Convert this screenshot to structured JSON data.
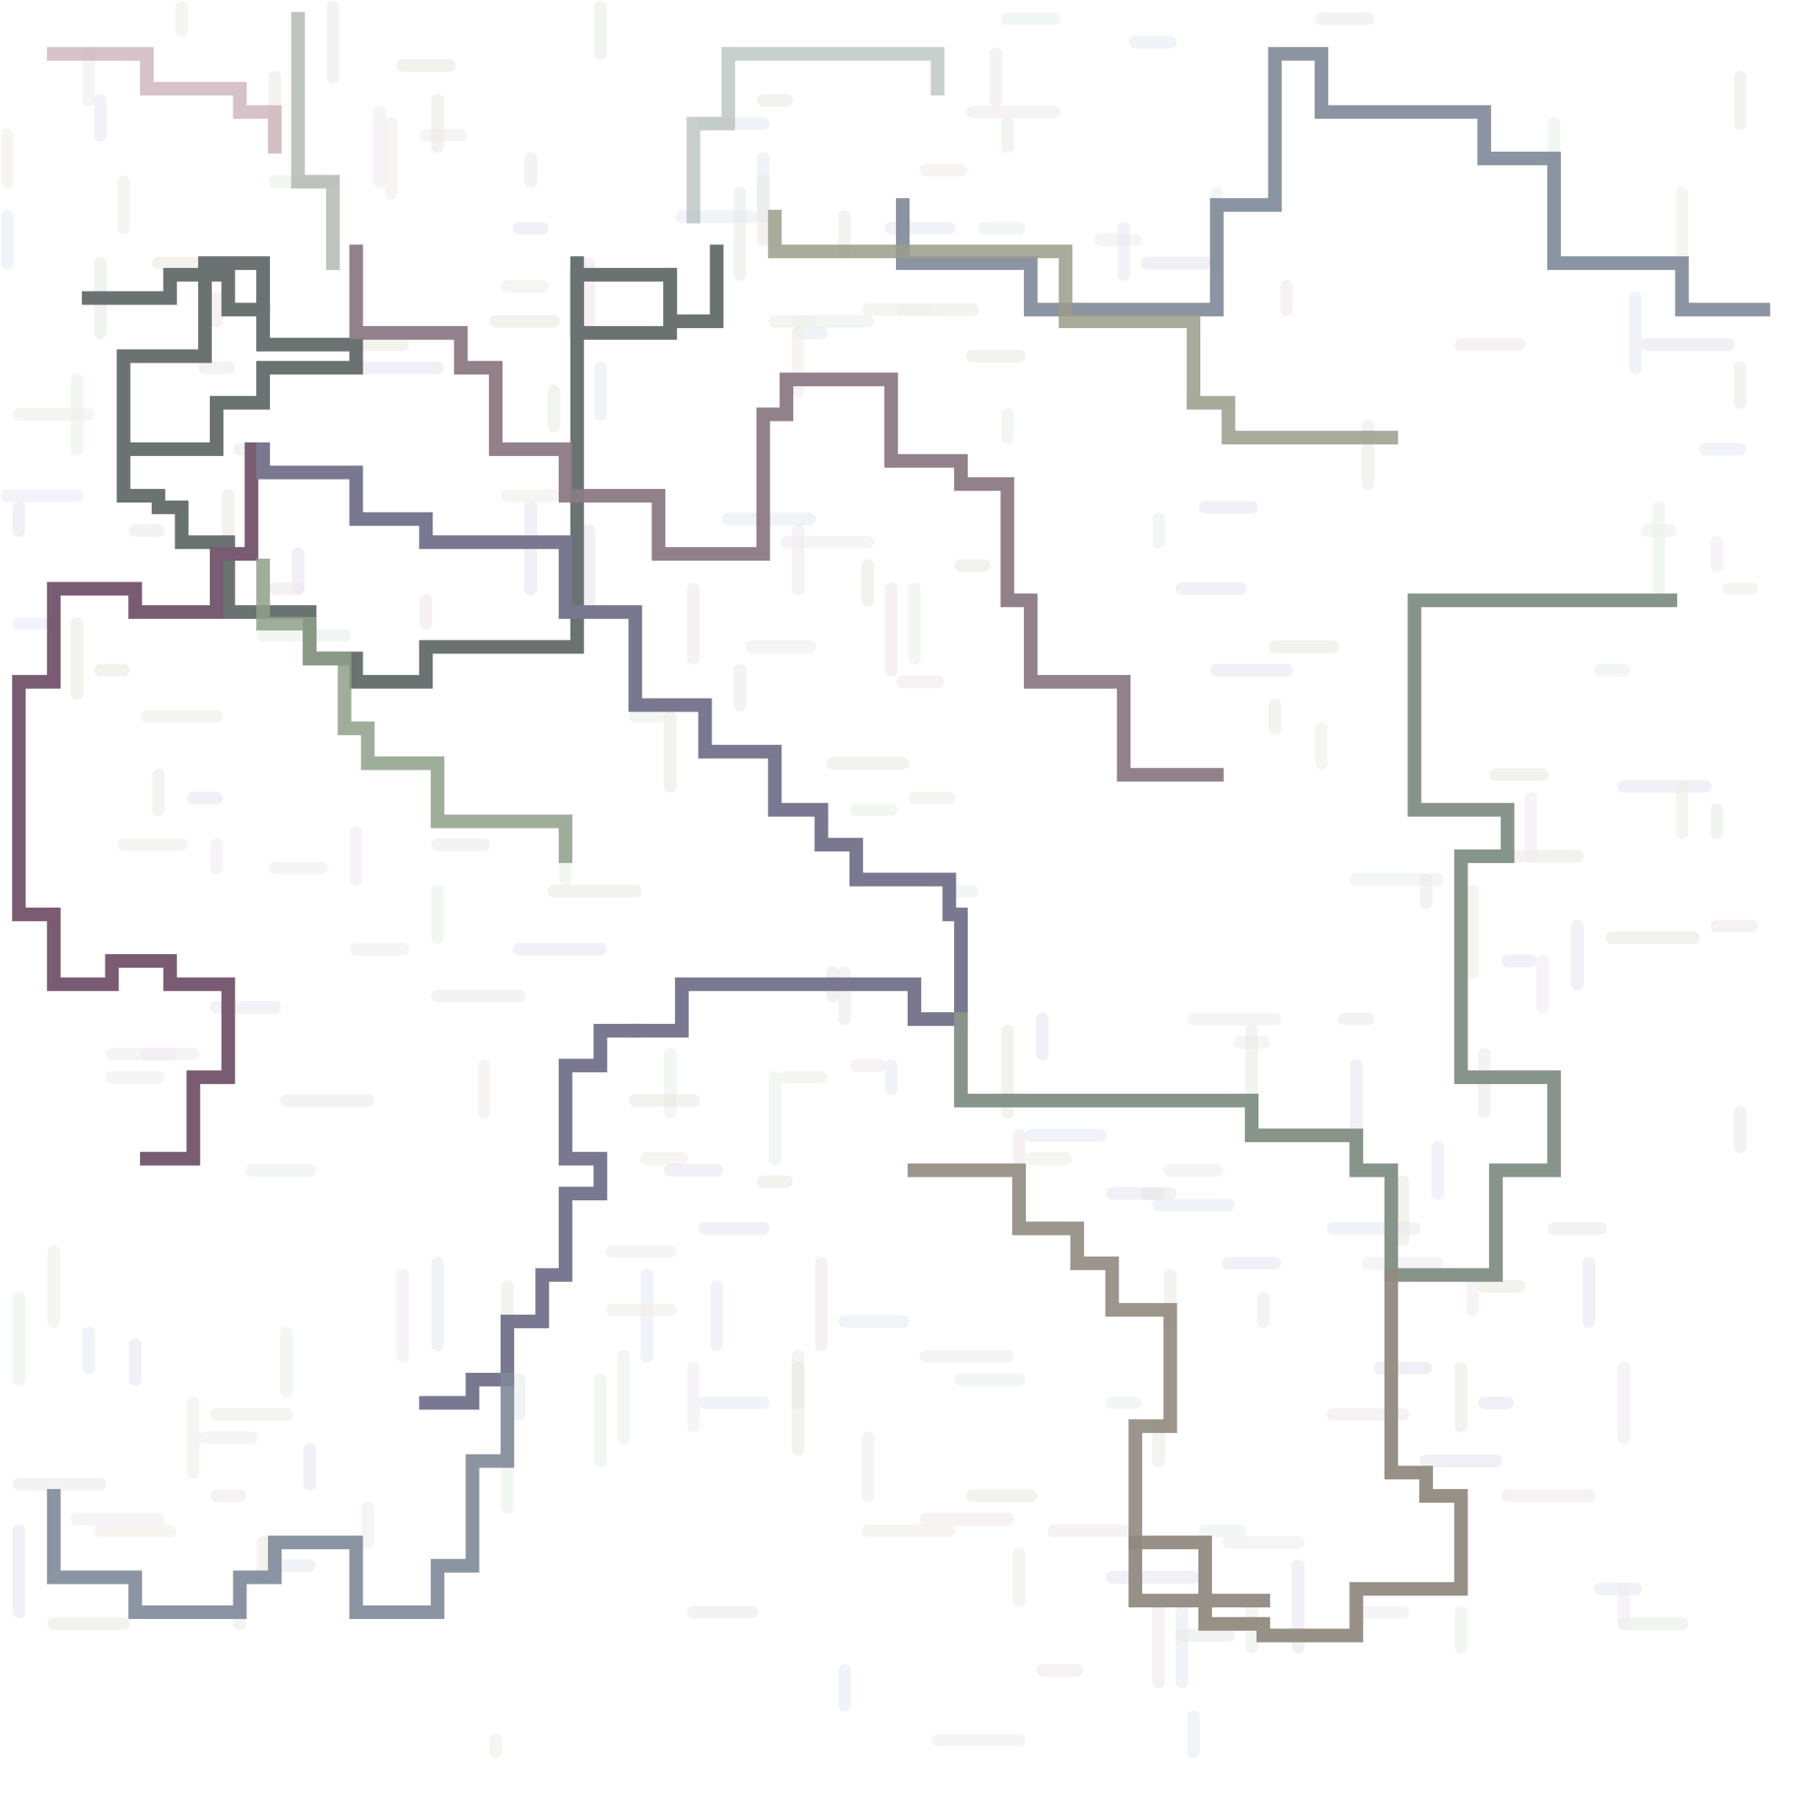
{
  "board": {
    "background": "#ffffff",
    "grid": 50,
    "stroke_dark": "#6a7272",
    "stroke_purple": "#7a5c72",
    "stroke_violet": "#7a7890",
    "stroke_sage": "#86948a",
    "stroke_taupe": "#908a80",
    "stroke_slate": "#7e8898",
    "stroke_rose": "#c8aeb6"
  },
  "paths": [
    {
      "name": "dark-path-left",
      "color": "#6a7272",
      "opacity": 1,
      "cells": [
        [
          7,
          25
        ],
        [
          14,
          25
        ],
        [
          14,
          23
        ],
        [
          19,
          23
        ],
        [
          19,
          26
        ],
        [
          22,
          26
        ],
        [
          22,
          29
        ],
        [
          30,
          29
        ],
        [
          30,
          31
        ],
        [
          22,
          31
        ],
        [
          22,
          34
        ],
        [
          18,
          34
        ],
        [
          18,
          38
        ],
        [
          10,
          38
        ],
        [
          10,
          42
        ],
        [
          13,
          42
        ],
        [
          13,
          43
        ],
        [
          15,
          43
        ],
        [
          15,
          46
        ],
        [
          19,
          46
        ],
        [
          19,
          52
        ],
        [
          26,
          52
        ],
        [
          26,
          56
        ],
        [
          30,
          56
        ],
        [
          30,
          58
        ],
        [
          36,
          58
        ],
        [
          36,
          55
        ],
        [
          49,
          55
        ],
        [
          49,
          23
        ],
        [
          57,
          23
        ],
        [
          57,
          27
        ],
        [
          61,
          27
        ],
        [
          61,
          21
        ]
      ]
    },
    {
      "name": "dark-path-center",
      "color": "#6a7272",
      "opacity": 1,
      "cells": [
        [
          10,
          38
        ],
        [
          10,
          30
        ],
        [
          17,
          30
        ],
        [
          17,
          22
        ],
        [
          22,
          22
        ],
        [
          22,
          26
        ]
      ]
    },
    {
      "name": "dark-path-right",
      "color": "#6a7272",
      "opacity": 1,
      "cells": [
        [
          49,
          22
        ],
        [
          49,
          28
        ],
        [
          57,
          28
        ],
        [
          57,
          23
        ]
      ]
    },
    {
      "name": "top-grey-path",
      "color": "#7e8898",
      "opacity": 0.9,
      "cells": [
        [
          77,
          17
        ],
        [
          77,
          22
        ],
        [
          88,
          22
        ],
        [
          88,
          26
        ],
        [
          104,
          26
        ],
        [
          104,
          17
        ],
        [
          109,
          17
        ],
        [
          109,
          4
        ],
        [
          113,
          4
        ],
        [
          113,
          9
        ],
        [
          127,
          9
        ],
        [
          127,
          13
        ],
        [
          133,
          13
        ],
        [
          133,
          22
        ],
        [
          144,
          22
        ],
        [
          144,
          26
        ],
        [
          151,
          26
        ]
      ]
    },
    {
      "name": "purple-path",
      "color": "#7a5c72",
      "opacity": 1,
      "cells": [
        [
          21,
          38
        ],
        [
          21,
          47
        ],
        [
          18,
          47
        ],
        [
          18,
          52
        ],
        [
          11,
          52
        ],
        [
          11,
          50
        ],
        [
          4,
          50
        ],
        [
          4,
          58
        ],
        [
          1,
          58
        ],
        [
          1,
          78
        ],
        [
          4,
          78
        ],
        [
          4,
          84
        ],
        [
          9,
          84
        ],
        [
          9,
          82
        ],
        [
          14,
          82
        ],
        [
          14,
          84
        ],
        [
          19,
          84
        ],
        [
          19,
          92
        ],
        [
          16,
          92
        ],
        [
          16,
          99
        ],
        [
          12,
          99
        ]
      ]
    },
    {
      "name": "violet-path",
      "color": "#7a7890",
      "opacity": 1,
      "cells": [
        [
          54,
          88
        ],
        [
          58,
          88
        ],
        [
          58,
          84
        ],
        [
          78,
          84
        ],
        [
          78,
          87
        ],
        [
          82,
          87
        ],
        [
          82,
          78
        ],
        [
          81,
          78
        ],
        [
          81,
          75
        ],
        [
          73,
          75
        ],
        [
          73,
          72
        ],
        [
          70,
          72
        ],
        [
          70,
          69
        ],
        [
          66,
          69
        ],
        [
          66,
          64
        ],
        [
          60,
          64
        ],
        [
          60,
          60
        ],
        [
          54,
          60
        ],
        [
          54,
          52
        ],
        [
          48,
          52
        ],
        [
          48,
          46
        ],
        [
          36,
          46
        ],
        [
          36,
          44
        ],
        [
          30,
          44
        ],
        [
          30,
          40
        ],
        [
          22,
          40
        ],
        [
          22,
          38
        ]
      ]
    },
    {
      "name": "violet-path-lower",
      "color": "#7a7890",
      "opacity": 1,
      "cells": [
        [
          54,
          88
        ],
        [
          51,
          88
        ],
        [
          51,
          91
        ],
        [
          48,
          91
        ],
        [
          48,
          99
        ],
        [
          51,
          99
        ],
        [
          51,
          102
        ],
        [
          48,
          102
        ],
        [
          48,
          109
        ],
        [
          46,
          109
        ],
        [
          46,
          113
        ],
        [
          43,
          113
        ],
        [
          43,
          118
        ],
        [
          40,
          118
        ],
        [
          40,
          120
        ],
        [
          36,
          120
        ]
      ]
    },
    {
      "name": "sage-path-right",
      "color": "#86948a",
      "opacity": 1,
      "cells": [
        [
          82,
          87
        ],
        [
          82,
          94
        ],
        [
          107,
          94
        ],
        [
          107,
          97
        ],
        [
          116,
          97
        ],
        [
          116,
          100
        ],
        [
          119,
          100
        ],
        [
          119,
          109
        ],
        [
          128,
          109
        ],
        [
          128,
          100
        ],
        [
          133,
          100
        ],
        [
          133,
          92
        ],
        [
          125,
          92
        ],
        [
          125,
          73
        ],
        [
          129,
          73
        ],
        [
          129,
          69
        ],
        [
          121,
          69
        ],
        [
          121,
          51
        ],
        [
          143,
          51
        ]
      ]
    },
    {
      "name": "taupe-path",
      "color": "#908a80",
      "opacity": 0.95,
      "cells": [
        [
          119,
          109
        ],
        [
          119,
          126
        ],
        [
          122,
          126
        ],
        [
          122,
          128
        ],
        [
          125,
          128
        ],
        [
          125,
          136
        ],
        [
          116,
          136
        ],
        [
          116,
          140
        ],
        [
          108,
          140
        ],
        [
          108,
          139
        ],
        [
          103,
          139
        ],
        [
          103,
          132
        ],
        [
          97,
          132
        ],
        [
          97,
          137
        ],
        [
          108,
          137
        ]
      ]
    },
    {
      "name": "taupe-path-mid",
      "color": "#908a80",
      "opacity": 0.9,
      "cells": [
        [
          97,
          132
        ],
        [
          97,
          122
        ],
        [
          100,
          122
        ],
        [
          100,
          112
        ],
        [
          95,
          112
        ],
        [
          95,
          108
        ],
        [
          92,
          108
        ],
        [
          92,
          105
        ],
        [
          87,
          105
        ],
        [
          87,
          100
        ],
        [
          78,
          100
        ]
      ]
    },
    {
      "name": "slate-path-bottom",
      "color": "#7e8898",
      "opacity": 0.9,
      "cells": [
        [
          43,
          118
        ],
        [
          43,
          125
        ],
        [
          40,
          125
        ],
        [
          40,
          134
        ],
        [
          37,
          134
        ],
        [
          37,
          138
        ],
        [
          30,
          138
        ],
        [
          30,
          132
        ],
        [
          23,
          132
        ],
        [
          23,
          135
        ],
        [
          20,
          135
        ],
        [
          20,
          138
        ],
        [
          11,
          138
        ],
        [
          11,
          135
        ],
        [
          4,
          135
        ],
        [
          4,
          128
        ]
      ]
    },
    {
      "name": "mauve-path-upper",
      "color": "#8c7a84",
      "opacity": 0.95,
      "cells": [
        [
          30,
          21
        ],
        [
          30,
          28
        ],
        [
          39,
          28
        ],
        [
          39,
          31
        ],
        [
          42,
          31
        ],
        [
          42,
          38
        ],
        [
          48,
          38
        ],
        [
          48,
          42
        ],
        [
          56,
          42
        ],
        [
          56,
          47
        ],
        [
          65,
          47
        ],
        [
          65,
          35
        ],
        [
          67,
          35
        ],
        [
          67,
          32
        ],
        [
          76,
          32
        ],
        [
          76,
          39
        ],
        [
          82,
          39
        ],
        [
          82,
          41
        ],
        [
          86,
          41
        ],
        [
          86,
          51
        ],
        [
          88,
          51
        ],
        [
          88,
          58
        ],
        [
          96,
          58
        ],
        [
          96,
          66
        ],
        [
          104,
          66
        ]
      ]
    },
    {
      "name": "rose-path-top",
      "color": "#c8aeb6",
      "opacity": 0.75,
      "cells": [
        [
          4,
          4
        ],
        [
          12,
          4
        ],
        [
          12,
          7
        ],
        [
          20,
          7
        ],
        [
          20,
          9
        ],
        [
          23,
          9
        ],
        [
          23,
          12
        ]
      ]
    },
    {
      "name": "sage-path-top",
      "color": "#a8b0a8",
      "opacity": 0.75,
      "cells": [
        [
          25,
          1
        ],
        [
          25,
          15
        ],
        [
          28,
          15
        ],
        [
          28,
          22
        ]
      ]
    },
    {
      "name": "olive-path-top",
      "color": "#9a9c8a",
      "opacity": 0.85,
      "cells": [
        [
          66,
          18
        ],
        [
          66,
          21
        ],
        [
          91,
          21
        ],
        [
          91,
          27
        ],
        [
          102,
          27
        ],
        [
          102,
          34
        ],
        [
          105,
          34
        ],
        [
          105,
          37
        ],
        [
          119,
          37
        ]
      ]
    },
    {
      "name": "green-path-left",
      "color": "#8ea08a",
      "opacity": 0.85,
      "cells": [
        [
          22,
          48
        ],
        [
          22,
          53
        ],
        [
          26,
          53
        ],
        [
          26,
          56
        ],
        [
          29,
          56
        ],
        [
          29,
          62
        ],
        [
          31,
          62
        ],
        [
          31,
          65
        ],
        [
          37,
          65
        ],
        [
          37,
          70
        ],
        [
          48,
          70
        ],
        [
          48,
          73
        ]
      ]
    },
    {
      "name": "sage-path-top-center",
      "color": "#b0bcb8",
      "opacity": 0.7,
      "cells": [
        [
          59,
          18
        ],
        [
          59,
          10
        ],
        [
          62,
          10
        ],
        [
          62,
          4
        ],
        [
          80,
          4
        ],
        [
          80,
          7
        ]
      ]
    }
  ],
  "faint_segments": {
    "count": 260,
    "palette": [
      "#e8e4f2",
      "#f0e8ec",
      "#e6ece6",
      "#ece8e0",
      "#e4eaf2",
      "#f2ecf4",
      "#e8f2ec",
      "#f2eee6"
    ]
  }
}
